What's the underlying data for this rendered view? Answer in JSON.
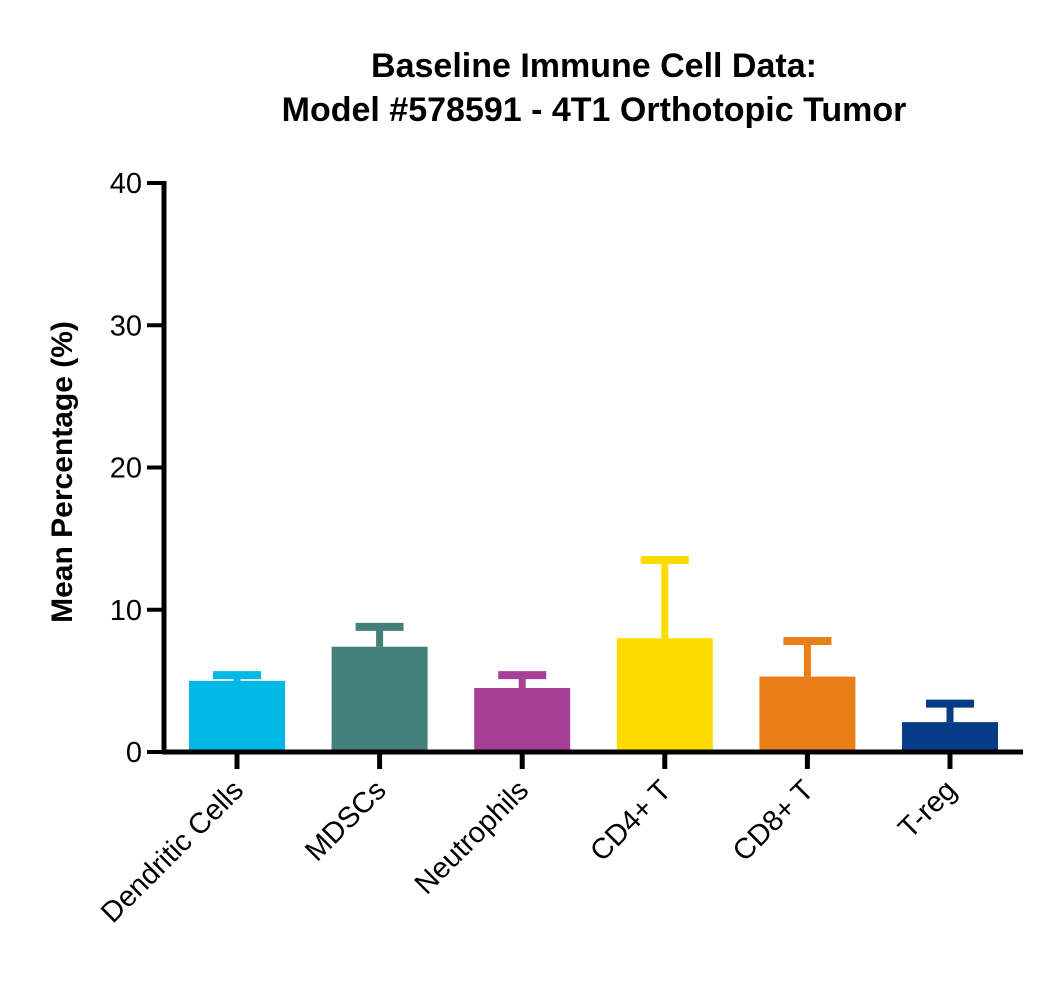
{
  "chart_data": {
    "type": "bar",
    "title_lines": [
      "Baseline Immune  Cell Data:",
      "Model #578591 - 4T1 Orthotopic Tumor"
    ],
    "xlabel": "",
    "ylabel": "Mean Percentage (%)",
    "ylim": [
      0,
      40
    ],
    "yticks": [
      0,
      10,
      20,
      30,
      40
    ],
    "yticks_labels": [
      "0",
      "10",
      "20",
      "30",
      "40"
    ],
    "categories": [
      "Dendritic Cells",
      "MDSCs",
      "Neutrophils",
      "CD4+ T",
      "CD8+ T",
      "T-reg"
    ],
    "values": [
      5.0,
      7.4,
      4.5,
      8.0,
      5.3,
      2.1
    ],
    "error_upper": [
      5.4,
      8.8,
      5.4,
      13.5,
      7.8,
      3.4
    ],
    "colors": [
      "#00B8E6",
      "#42807C",
      "#A83F97",
      "#FCDC00",
      "#EB7F17",
      "#063B87"
    ],
    "legend": "none",
    "grid": false
  }
}
